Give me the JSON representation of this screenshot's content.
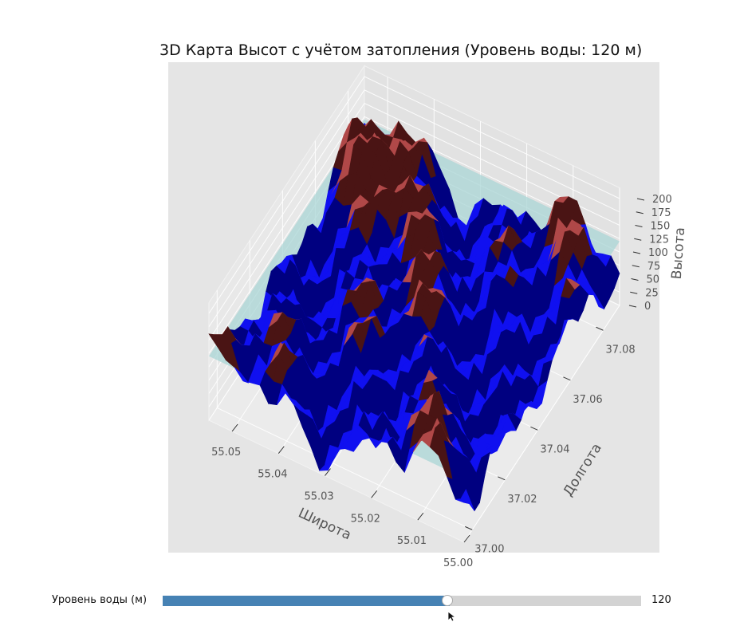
{
  "chart_data": {
    "type": "surface3d",
    "title": "3D Карта Высот с учётом затопления (Уровень воды: 120 м)",
    "axes": {
      "x": {
        "label": "Широта",
        "ticks": [
          "55.00",
          "55.01",
          "55.02",
          "55.03",
          "55.04",
          "55.05"
        ],
        "range": [
          55.0,
          55.055
        ]
      },
      "y": {
        "label": "Долгота",
        "ticks": [
          "37.00",
          "37.02",
          "37.04",
          "37.06",
          "37.08"
        ],
        "range": [
          36.995,
          37.09
        ]
      },
      "z": {
        "label": "Высота",
        "ticks": [
          "0",
          "25",
          "50",
          "75",
          "100",
          "125",
          "150",
          "175",
          "200"
        ],
        "range": [
          0,
          200
        ]
      }
    },
    "water_level": 120,
    "grid": true,
    "colors": {
      "pane_bg": "#e5e5e5",
      "grid": "#ffffff",
      "flooded": "#1010f0",
      "flooded_dark": "#000080",
      "terrain": "#b04848",
      "terrain_dark": "#4a1414",
      "water_plane": "#a9d6d6"
    }
  },
  "slider": {
    "label": "Уровень воды (м)",
    "value": 120,
    "min": 0,
    "max": 200,
    "value_text": "120",
    "fill_color": "#4682b4",
    "track_color": "#d3d3d3"
  }
}
